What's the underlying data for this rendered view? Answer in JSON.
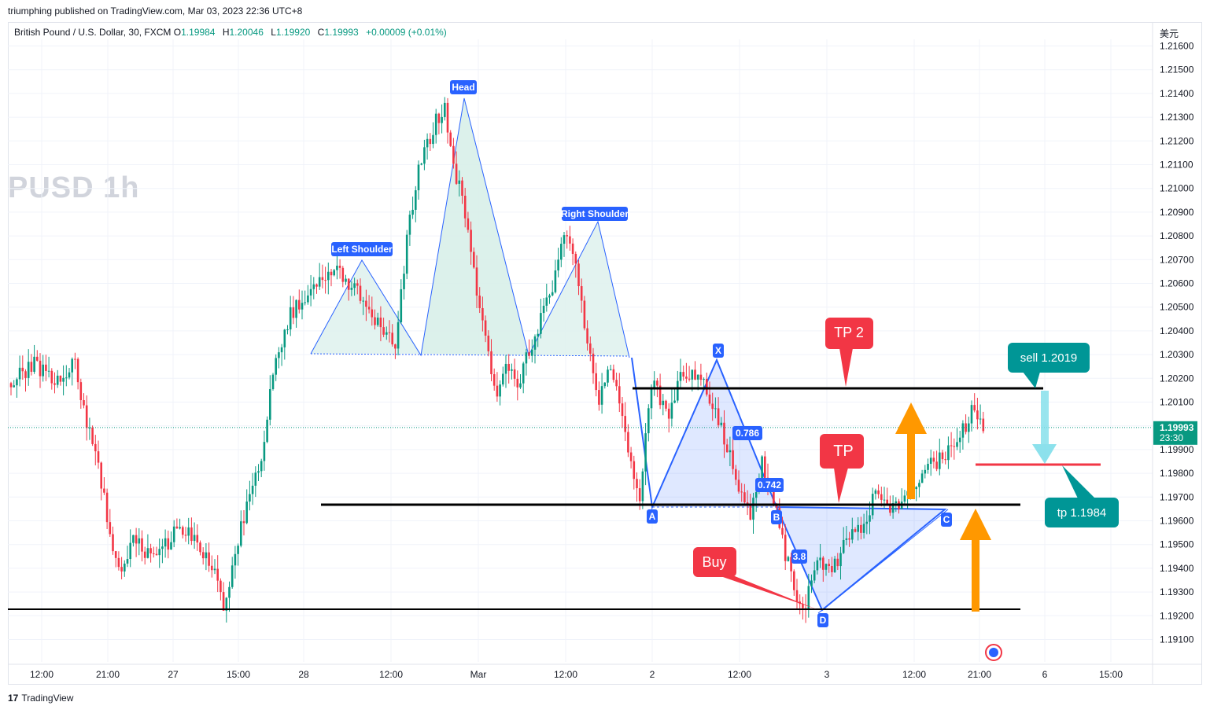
{
  "header": {
    "publisher": "triumphing published on TradingView.com, Mar 03, 2023 22:36 UTC+8",
    "symbol": "British Pound / U.S. Dollar, 30, FXCM",
    "ohlc": [
      {
        "k": "O",
        "v": "1.19984"
      },
      {
        "k": "H",
        "v": "1.20046"
      },
      {
        "k": "L",
        "v": "1.19920"
      },
      {
        "k": "C",
        "v": "1.19993"
      }
    ],
    "change": "+0.00009 (+0.01%)",
    "currency": "美元",
    "watermark": "PUSD  1h"
  },
  "footer": {
    "brand": "TradingView"
  },
  "colors": {
    "up": "#089981",
    "down": "#f23645",
    "pattern_blue": "#2962ff",
    "orange": "#ff9800",
    "teal": "#009696",
    "red_label": "#f23645"
  },
  "chart_data": {
    "type": "candlestick",
    "ylim": [
      1.1905,
      1.2168
    ],
    "y_ticks": [
      "1.21600",
      "1.21500",
      "1.21400",
      "1.21300",
      "1.21200",
      "1.21100",
      "1.21000",
      "1.20900",
      "1.20800",
      "1.20700",
      "1.20600",
      "1.20500",
      "1.20400",
      "1.20300",
      "1.20200",
      "1.20100",
      "1.20000",
      "1.19900",
      "1.19800",
      "1.19700",
      "1.19600",
      "1.19500",
      "1.19400",
      "1.19300",
      "1.19200",
      "1.19100"
    ],
    "x_ticks": [
      "12:00",
      "21:00",
      "27",
      "15:00",
      "28",
      "12:00",
      "Mar",
      "12:00",
      "2",
      "12:00",
      "3",
      "12:00",
      "21:00",
      "6",
      "15:00"
    ],
    "last_price": "1.19993",
    "countdown": "23:30",
    "price_path": [
      [
        0,
        1.2018
      ],
      [
        8,
        1.2026
      ],
      [
        16,
        1.2019
      ],
      [
        22,
        1.2026
      ],
      [
        26,
        1.2001
      ],
      [
        30,
        1.1985
      ],
      [
        34,
        1.1952
      ],
      [
        38,
        1.1938
      ],
      [
        42,
        1.1951
      ],
      [
        50,
        1.1944
      ],
      [
        58,
        1.1958
      ],
      [
        66,
        1.1947
      ],
      [
        70,
        1.1938
      ],
      [
        73,
        1.1922
      ],
      [
        78,
        1.1952
      ],
      [
        82,
        1.197
      ],
      [
        86,
        1.1987
      ],
      [
        90,
        1.2022
      ],
      [
        96,
        1.2047
      ],
      [
        104,
        1.206
      ],
      [
        112,
        1.2066
      ],
      [
        120,
        1.2055
      ],
      [
        128,
        1.2038
      ],
      [
        132,
        1.2035
      ],
      [
        136,
        1.2078
      ],
      [
        140,
        1.2108
      ],
      [
        146,
        1.2128
      ],
      [
        149,
        1.2135
      ],
      [
        152,
        1.211
      ],
      [
        156,
        1.209
      ],
      [
        160,
        1.2055
      ],
      [
        164,
        1.203
      ],
      [
        167,
        1.2012
      ],
      [
        170,
        1.2028
      ],
      [
        174,
        1.2018
      ],
      [
        180,
        1.2038
      ],
      [
        186,
        1.2058
      ],
      [
        190,
        1.208
      ],
      [
        194,
        1.207
      ],
      [
        198,
        1.2035
      ],
      [
        202,
        1.201
      ],
      [
        206,
        1.2026
      ],
      [
        212,
        1.199
      ],
      [
        216,
        1.197
      ],
      [
        220,
        1.2018
      ],
      [
        226,
        1.2006
      ],
      [
        230,
        1.202
      ],
      [
        234,
        1.2022
      ],
      [
        238,
        1.2018
      ],
      [
        242,
        1.2006
      ],
      [
        246,
        1.199
      ],
      [
        250,
        1.1975
      ],
      [
        254,
        1.1963
      ],
      [
        258,
        1.1984
      ],
      [
        262,
        1.1968
      ],
      [
        266,
        1.1946
      ],
      [
        270,
        1.1928
      ],
      [
        273,
        1.1925
      ],
      [
        277,
        1.1944
      ],
      [
        282,
        1.1938
      ],
      [
        287,
        1.1952
      ],
      [
        292,
        1.1956
      ],
      [
        297,
        1.1972
      ],
      [
        302,
        1.1966
      ],
      [
        308,
        1.197
      ],
      [
        314,
        1.1982
      ],
      [
        320,
        1.1986
      ],
      [
        326,
        1.1995
      ],
      [
        330,
        1.2006
      ],
      [
        334,
        1.1999
      ]
    ],
    "patterns": {
      "head_and_shoulders": {
        "labels": [
          "Left Shoulder",
          "Head",
          "Right Shoulder"
        ]
      },
      "xabcd": {
        "labels": [
          "X",
          "A",
          "B",
          "C",
          "D"
        ],
        "ratios": [
          "0.786",
          "0.742",
          "3.8"
        ]
      }
    },
    "levels": [
      {
        "price": 1.2016,
        "label": "TP 2"
      },
      {
        "price": 1.1967,
        "label": "TP"
      },
      {
        "price": 1.1922,
        "label": ""
      },
      {
        "price": 1.1983,
        "label": ""
      }
    ],
    "annotations": {
      "buy": "Buy",
      "tp2": "TP 2",
      "tp": "TP",
      "sell": "sell  1.2019",
      "tp_target": "tp  1.1984"
    }
  }
}
